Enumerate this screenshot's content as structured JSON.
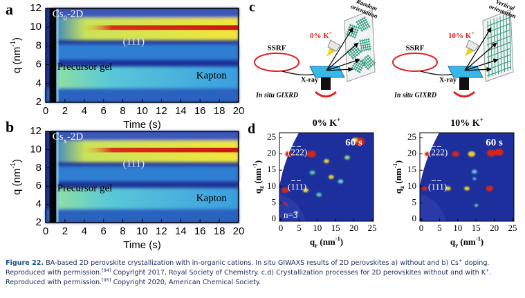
{
  "figure": {
    "a": {
      "label": "a",
      "cs": "Cs",
      "cs_sub": "0",
      "cs_tail": "-2D",
      "peak": "(111)",
      "precursor": "Precursor gel",
      "kapton": "Kapton",
      "y_label": [
        "q (nm",
        "-1",
        ")"
      ],
      "x_label": "Time (s)",
      "yticks": [
        "2",
        "4",
        "6",
        "8",
        "10",
        "12"
      ],
      "xticks": [
        "0",
        "2",
        "4",
        "6",
        "8",
        "10",
        "12",
        "14",
        "16",
        "18",
        "20"
      ]
    },
    "b": {
      "label": "b",
      "cs": "Cs",
      "cs_sub": "x",
      "cs_tail": "-2D",
      "peak": "(111)",
      "precursor": "Precursor gel",
      "kapton": "Kapton",
      "y_label": [
        "q (nm",
        "-1",
        ")"
      ],
      "x_label": "Time (s)",
      "yticks": [
        "2",
        "4",
        "6",
        "8",
        "10",
        "12"
      ],
      "xticks": [
        "0",
        "2",
        "4",
        "6",
        "8",
        "10",
        "12",
        "14",
        "16",
        "18",
        "20"
      ]
    },
    "c": {
      "label": "c",
      "left": {
        "ssrf": "SSRF",
        "k": "0% K",
        "k_sup": "+",
        "orientation": [
          "Random",
          "orientation"
        ],
        "xray": "X-ray",
        "gixrd": "In situ GIXRD"
      },
      "right": {
        "ssrf": "SSRF",
        "k": "10% K",
        "k_sup": "+",
        "orientation": [
          "Vertical",
          "orientation"
        ],
        "xray": "X-ray",
        "gixrd": "In situ GIXRD"
      }
    },
    "d": {
      "label": "d",
      "plots": [
        {
          "title": "0% K",
          "title_sup": "+",
          "time": "60 s",
          "peaks": [
            "(222)",
            "(111)"
          ],
          "n": "n=3",
          "y_label": [
            "q",
            "z",
            " (nm",
            "-1",
            ")"
          ],
          "x_label": [
            "q",
            "r",
            " (nm",
            "-1",
            ")"
          ],
          "yticks": [
            "0",
            "5",
            "10",
            "15",
            "20",
            "25"
          ],
          "xticks": [
            "0",
            "5",
            "10",
            "15",
            "20",
            "25"
          ]
        },
        {
          "title": "10% K",
          "title_sup": "+",
          "time": "60 s",
          "peaks": [
            "(222)",
            "(111)"
          ],
          "y_label": [
            "q",
            "z",
            " (nm",
            "-1",
            ")"
          ],
          "x_label": [
            "q",
            "r",
            " (nm",
            "-1",
            ")"
          ],
          "yticks": [
            "0",
            "5",
            "10",
            "15",
            "20",
            "25"
          ],
          "xticks": [
            "0",
            "5",
            "10",
            "15",
            "20",
            "25"
          ]
        }
      ]
    },
    "caption": {
      "lead": "Figure 22.",
      "parts": [
        " BA-based 2D perovskite crystallization with in-organic cations. In situ GIWAXS results of 2D perovskites a) without and b) Cs",
        "+",
        " doping. Reproduced with permission.",
        "[94]",
        " Copyright 2017, Royal Society of Chemistry. c,d) Crystallization processes for 2D perovskites without and with K",
        "+",
        ". Reproduced with permission.",
        "[95]",
        " Copyright 2020, American Chemical Society."
      ]
    }
  }
}
